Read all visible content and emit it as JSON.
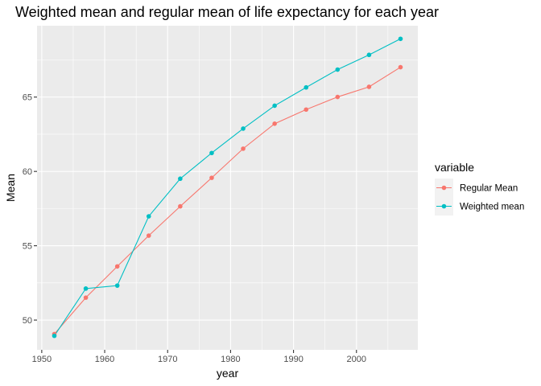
{
  "chart_data": {
    "type": "line",
    "title": "Weighted mean and regular mean of life expectancy for each year",
    "xlabel": "year",
    "ylabel": "Mean",
    "xlim": [
      1949.25,
      2009.75
    ],
    "ylim": [
      48.0,
      69.8
    ],
    "x_ticks": [
      1950,
      1960,
      1970,
      1980,
      1990,
      2000
    ],
    "y_ticks": [
      50,
      55,
      60,
      65
    ],
    "grid": true,
    "legend": {
      "title": "variable",
      "placement": "right"
    },
    "x": [
      1952,
      1957,
      1962,
      1967,
      1972,
      1977,
      1982,
      1987,
      1992,
      1997,
      2002,
      2007
    ],
    "series": [
      {
        "name": "Regular Mean",
        "color": "#F8766D",
        "values": [
          49.06,
          51.51,
          53.61,
          55.68,
          57.65,
          59.57,
          61.53,
          63.21,
          64.16,
          65.01,
          65.69,
          67.01
        ]
      },
      {
        "name": "Weighted mean",
        "color": "#00BFC4",
        "values": [
          48.94,
          52.12,
          52.32,
          56.98,
          59.51,
          61.24,
          62.88,
          64.42,
          65.65,
          66.85,
          67.84,
          68.92
        ]
      }
    ]
  }
}
